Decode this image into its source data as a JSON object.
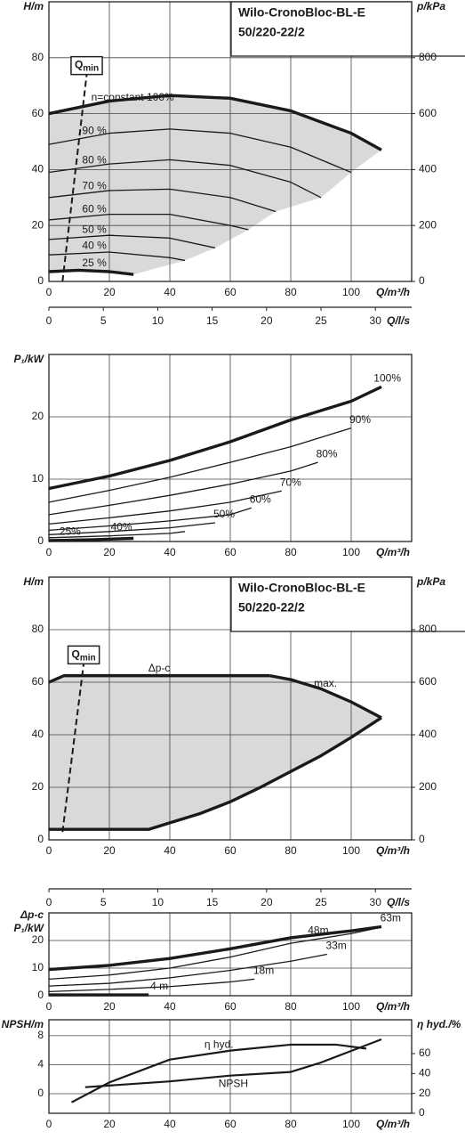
{
  "chart_data": [
    {
      "type": "line",
      "title": [
        "Wilo-CronoBloc-BL-E",
        "50/220-22/2"
      ],
      "ylabel": "H/m",
      "y2label": "p/kPa",
      "xlabel": "Q/m³/h",
      "xlim": [
        0,
        120
      ],
      "xticks": [
        0,
        20,
        40,
        60,
        80,
        100
      ],
      "ylim": [
        0,
        100
      ],
      "yticks": [
        0,
        20,
        40,
        60,
        80
      ],
      "y2lim": [
        0,
        1000
      ],
      "y2ticks": [
        0,
        200,
        400,
        600,
        800
      ],
      "x2label": "Q/l/s",
      "x2lim": [
        0,
        33.33
      ],
      "x2ticks": [
        0,
        5,
        10,
        15,
        20,
        25,
        30
      ],
      "grid": true,
      "color": "#1a1a1a",
      "shade_color": "#d9d9d9",
      "shade_mode": "fan",
      "qmin": {
        "label": "Q",
        "sub": "min",
        "x": [
          4.5,
          12.5
        ],
        "values": [
          0,
          74
        ]
      },
      "series": [
        {
          "name": "n=constant 100%",
          "style": "thick",
          "x": [
            0,
            20,
            40,
            60,
            80,
            100,
            110
          ],
          "values": [
            60,
            64.5,
            66.5,
            65.5,
            61,
            53,
            47
          ]
        },
        {
          "name": "90 %",
          "style": "thin",
          "x": [
            0,
            20,
            40,
            60,
            80,
            100
          ],
          "values": [
            49,
            53,
            54.5,
            53,
            48,
            39
          ]
        },
        {
          "name": "80 %",
          "style": "thin",
          "x": [
            0,
            20,
            40,
            60,
            80,
            90
          ],
          "values": [
            39,
            42,
            43.5,
            41.5,
            35.5,
            30
          ]
        },
        {
          "name": "70 %",
          "style": "thin",
          "x": [
            0,
            20,
            40,
            60,
            75
          ],
          "values": [
            30,
            32.5,
            33,
            30,
            25
          ]
        },
        {
          "name": "60 %",
          "style": "thin",
          "x": [
            0,
            20,
            40,
            60,
            66
          ],
          "values": [
            22,
            24,
            24,
            20,
            18.5
          ]
        },
        {
          "name": "50 %",
          "style": "thin",
          "x": [
            0,
            20,
            40,
            55
          ],
          "values": [
            15,
            16.5,
            15.5,
            12
          ]
        },
        {
          "name": "40 %",
          "style": "thin",
          "x": [
            0,
            20,
            40,
            45
          ],
          "values": [
            9.5,
            10.5,
            8.5,
            7.5
          ]
        },
        {
          "name": "25 %",
          "style": "thick",
          "x": [
            0,
            10,
            20,
            28
          ],
          "values": [
            3.5,
            4,
            3.5,
            2.5
          ]
        }
      ]
    },
    {
      "type": "line",
      "ylabel": "P₁/kW",
      "xlabel": "Q/m³/h",
      "xlim": [
        0,
        120
      ],
      "xticks": [
        0,
        20,
        40,
        60,
        80,
        100
      ],
      "ylim": [
        0,
        30
      ],
      "yticks": [
        0,
        10,
        20
      ],
      "grid": true,
      "color": "#1a1a1a",
      "series": [
        {
          "name": "100%",
          "style": "thick",
          "x": [
            0,
            20,
            40,
            60,
            80,
            100,
            110
          ],
          "values": [
            8.5,
            10.5,
            13,
            16,
            19.5,
            22.5,
            24.8
          ]
        },
        {
          "name": "90%",
          "style": "thin",
          "x": [
            0,
            20,
            40,
            60,
            80,
            100
          ],
          "values": [
            6.3,
            8.2,
            10.3,
            12.7,
            15.2,
            18.2
          ]
        },
        {
          "name": "80%",
          "style": "thin",
          "x": [
            0,
            20,
            40,
            60,
            80,
            89
          ],
          "values": [
            4.3,
            5.8,
            7.4,
            9.2,
            11.3,
            12.7
          ]
        },
        {
          "name": "70%",
          "style": "thin",
          "x": [
            0,
            20,
            40,
            60,
            77
          ],
          "values": [
            2.8,
            3.8,
            4.9,
            6.3,
            8.1
          ]
        },
        {
          "name": "60%",
          "style": "thin",
          "x": [
            0,
            20,
            40,
            60,
            67
          ],
          "values": [
            1.8,
            2.5,
            3.3,
            4.3,
            5.4
          ]
        },
        {
          "name": "50%",
          "style": "thin",
          "x": [
            0,
            20,
            40,
            55
          ],
          "values": [
            1.1,
            1.6,
            2.2,
            3
          ]
        },
        {
          "name": "40%",
          "style": "thin",
          "x": [
            0,
            20,
            40,
            45
          ],
          "values": [
            0.6,
            0.9,
            1.3,
            1.6
          ]
        },
        {
          "name": "25%",
          "style": "thick",
          "x": [
            0,
            15,
            28
          ],
          "values": [
            0.15,
            0.3,
            0.5
          ]
        }
      ]
    },
    {
      "type": "line",
      "title": [
        "Wilo-CronoBloc-BL-E",
        "50/220-22/2"
      ],
      "ylabel": "H/m",
      "y2label": "p/kPa",
      "xlabel": "Q/m³/h",
      "xlim": [
        0,
        120
      ],
      "xticks": [
        0,
        20,
        40,
        60,
        80,
        100
      ],
      "ylim": [
        0,
        100
      ],
      "yticks": [
        0,
        20,
        40,
        60,
        80
      ],
      "y2lim": [
        0,
        1000
      ],
      "y2ticks": [
        0,
        200,
        400,
        600,
        800
      ],
      "x2label": "Q/l/s",
      "x2lim": [
        0,
        33.33
      ],
      "x2ticks": [
        0,
        5,
        10,
        15,
        20,
        25,
        30
      ],
      "grid": true,
      "color": "#1a1a1a",
      "shade_color": "#d9d9d9",
      "shade_mode": "outline",
      "qmin": {
        "label": "Q",
        "sub": "min",
        "x": [
          4.5,
          11.5
        ],
        "values": [
          3,
          67
        ]
      },
      "series": [
        {
          "name": "Δp-c",
          "style": "thick",
          "x": [
            0,
            5,
            73
          ],
          "values": [
            60,
            62.5,
            62.5
          ]
        },
        {
          "name": "max.",
          "style": "thick",
          "x": [
            73,
            80,
            90,
            100,
            110
          ],
          "values": [
            62.5,
            61,
            57.5,
            52.5,
            46.5
          ]
        },
        {
          "style": "thick",
          "x": [
            110,
            100,
            90,
            80,
            70,
            60,
            50,
            40,
            33,
            0
          ],
          "values": [
            46.5,
            39,
            32,
            26,
            20,
            14.5,
            10,
            6.5,
            4,
            4
          ]
        }
      ]
    },
    {
      "type": "line",
      "ylabel_top": "Δp-c",
      "ylabel": "P₁/kW",
      "xlabel": "Q/m³/h",
      "xlim": [
        0,
        120
      ],
      "xticks": [
        0,
        20,
        40,
        60,
        80,
        100
      ],
      "ylim": [
        0,
        30
      ],
      "yticks": [
        0,
        10,
        20
      ],
      "grid": true,
      "color": "#1a1a1a",
      "series": [
        {
          "name": "63m",
          "style": "thick",
          "x": [
            0,
            20,
            40,
            60,
            80,
            100,
            110
          ],
          "values": [
            9.5,
            11,
            13.5,
            17,
            21,
            23.5,
            25
          ]
        },
        {
          "name": "48m",
          "style": "thin",
          "x": [
            0,
            20,
            40,
            60,
            80,
            100,
            110
          ],
          "values": [
            6,
            7.5,
            10,
            14,
            19,
            22.5,
            24.8
          ]
        },
        {
          "name": "33m",
          "style": "thin",
          "x": [
            0,
            20,
            40,
            60,
            80,
            92
          ],
          "values": [
            3.5,
            4.5,
            6.5,
            9.2,
            12.5,
            15
          ]
        },
        {
          "name": "18m",
          "style": "thin",
          "x": [
            0,
            20,
            40,
            60,
            68
          ],
          "values": [
            1.5,
            2.3,
            3.3,
            5,
            6
          ]
        },
        {
          "name": "4 m",
          "style": "thick",
          "x": [
            0,
            33
          ],
          "values": [
            0.3,
            0.3
          ]
        }
      ]
    },
    {
      "type": "line",
      "ylabel": "NPSH/m",
      "y2label": "η hyd./%",
      "xlabel": "Q/m³/h",
      "xlim": [
        0,
        120
      ],
      "xticks": [
        0,
        20,
        40,
        60,
        80,
        100
      ],
      "ylim": [
        -2.7,
        10.2
      ],
      "yticks": [
        0,
        4,
        8
      ],
      "y2lim": [
        0,
        94
      ],
      "y2ticks": [
        0,
        20,
        40,
        60
      ],
      "grid": true,
      "color": "#1a1a1a",
      "series": [
        {
          "name": "η hyd.",
          "axis": "y2",
          "style": "medium",
          "x": [
            7.5,
            20,
            40,
            60,
            80,
            95,
            105
          ],
          "values": [
            11,
            31,
            54,
            63,
            69,
            69,
            65
          ]
        },
        {
          "name": "NPSH",
          "style": "medium",
          "x": [
            12,
            40,
            60,
            80,
            90,
            100,
            110
          ],
          "values": [
            0.9,
            1.7,
            2.5,
            3,
            4.3,
            5.9,
            7.5
          ]
        }
      ]
    }
  ]
}
